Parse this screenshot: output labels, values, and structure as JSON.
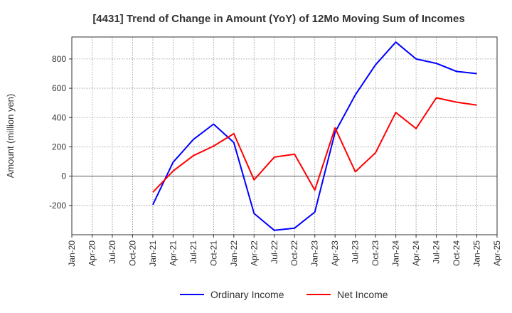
{
  "chart_data": {
    "type": "line",
    "title": "[4431]  Trend of Change in Amount (YoY) of 12Mo Moving Sum of Incomes",
    "xlabel": "",
    "ylabel": "Amount (million yen)",
    "ylim": [
      -400,
      950
    ],
    "y_ticks": [
      800,
      600,
      400,
      200,
      0,
      -200
    ],
    "y_tick_labels": [
      "800",
      "600",
      "400",
      "200",
      "0",
      "-200"
    ],
    "x_tick_labels": [
      "Jan-20",
      "Apr-20",
      "Jul-20",
      "Oct-20",
      "Jan-21",
      "Apr-21",
      "Jul-21",
      "Oct-21",
      "Jan-22",
      "Apr-22",
      "Jul-22",
      "Oct-22",
      "Jan-23",
      "Apr-23",
      "Jul-23",
      "Oct-23",
      "Jan-24",
      "Apr-24",
      "Jul-24",
      "Oct-24",
      "Jan-25",
      "Apr-25"
    ],
    "x": [
      "Jan-21",
      "Apr-21",
      "Jul-21",
      "Oct-21",
      "Jan-22",
      "Apr-22",
      "Jul-22",
      "Oct-22",
      "Jan-23",
      "Apr-23",
      "Jul-23",
      "Oct-23",
      "Jan-24",
      "Apr-24",
      "Jul-24",
      "Oct-24",
      "Jan-25"
    ],
    "grid": true,
    "legend_position": "bottom",
    "series": [
      {
        "name": "Ordinary Income",
        "color": "#0000ff",
        "values": [
          -195,
          95,
          250,
          355,
          230,
          -255,
          -370,
          -355,
          -245,
          300,
          555,
          760,
          915,
          800,
          770,
          715,
          700
        ]
      },
      {
        "name": "Net Income",
        "color": "#ff0000",
        "values": [
          -110,
          35,
          140,
          205,
          290,
          -25,
          130,
          150,
          -95,
          330,
          30,
          160,
          435,
          325,
          535,
          505,
          485
        ]
      }
    ]
  }
}
